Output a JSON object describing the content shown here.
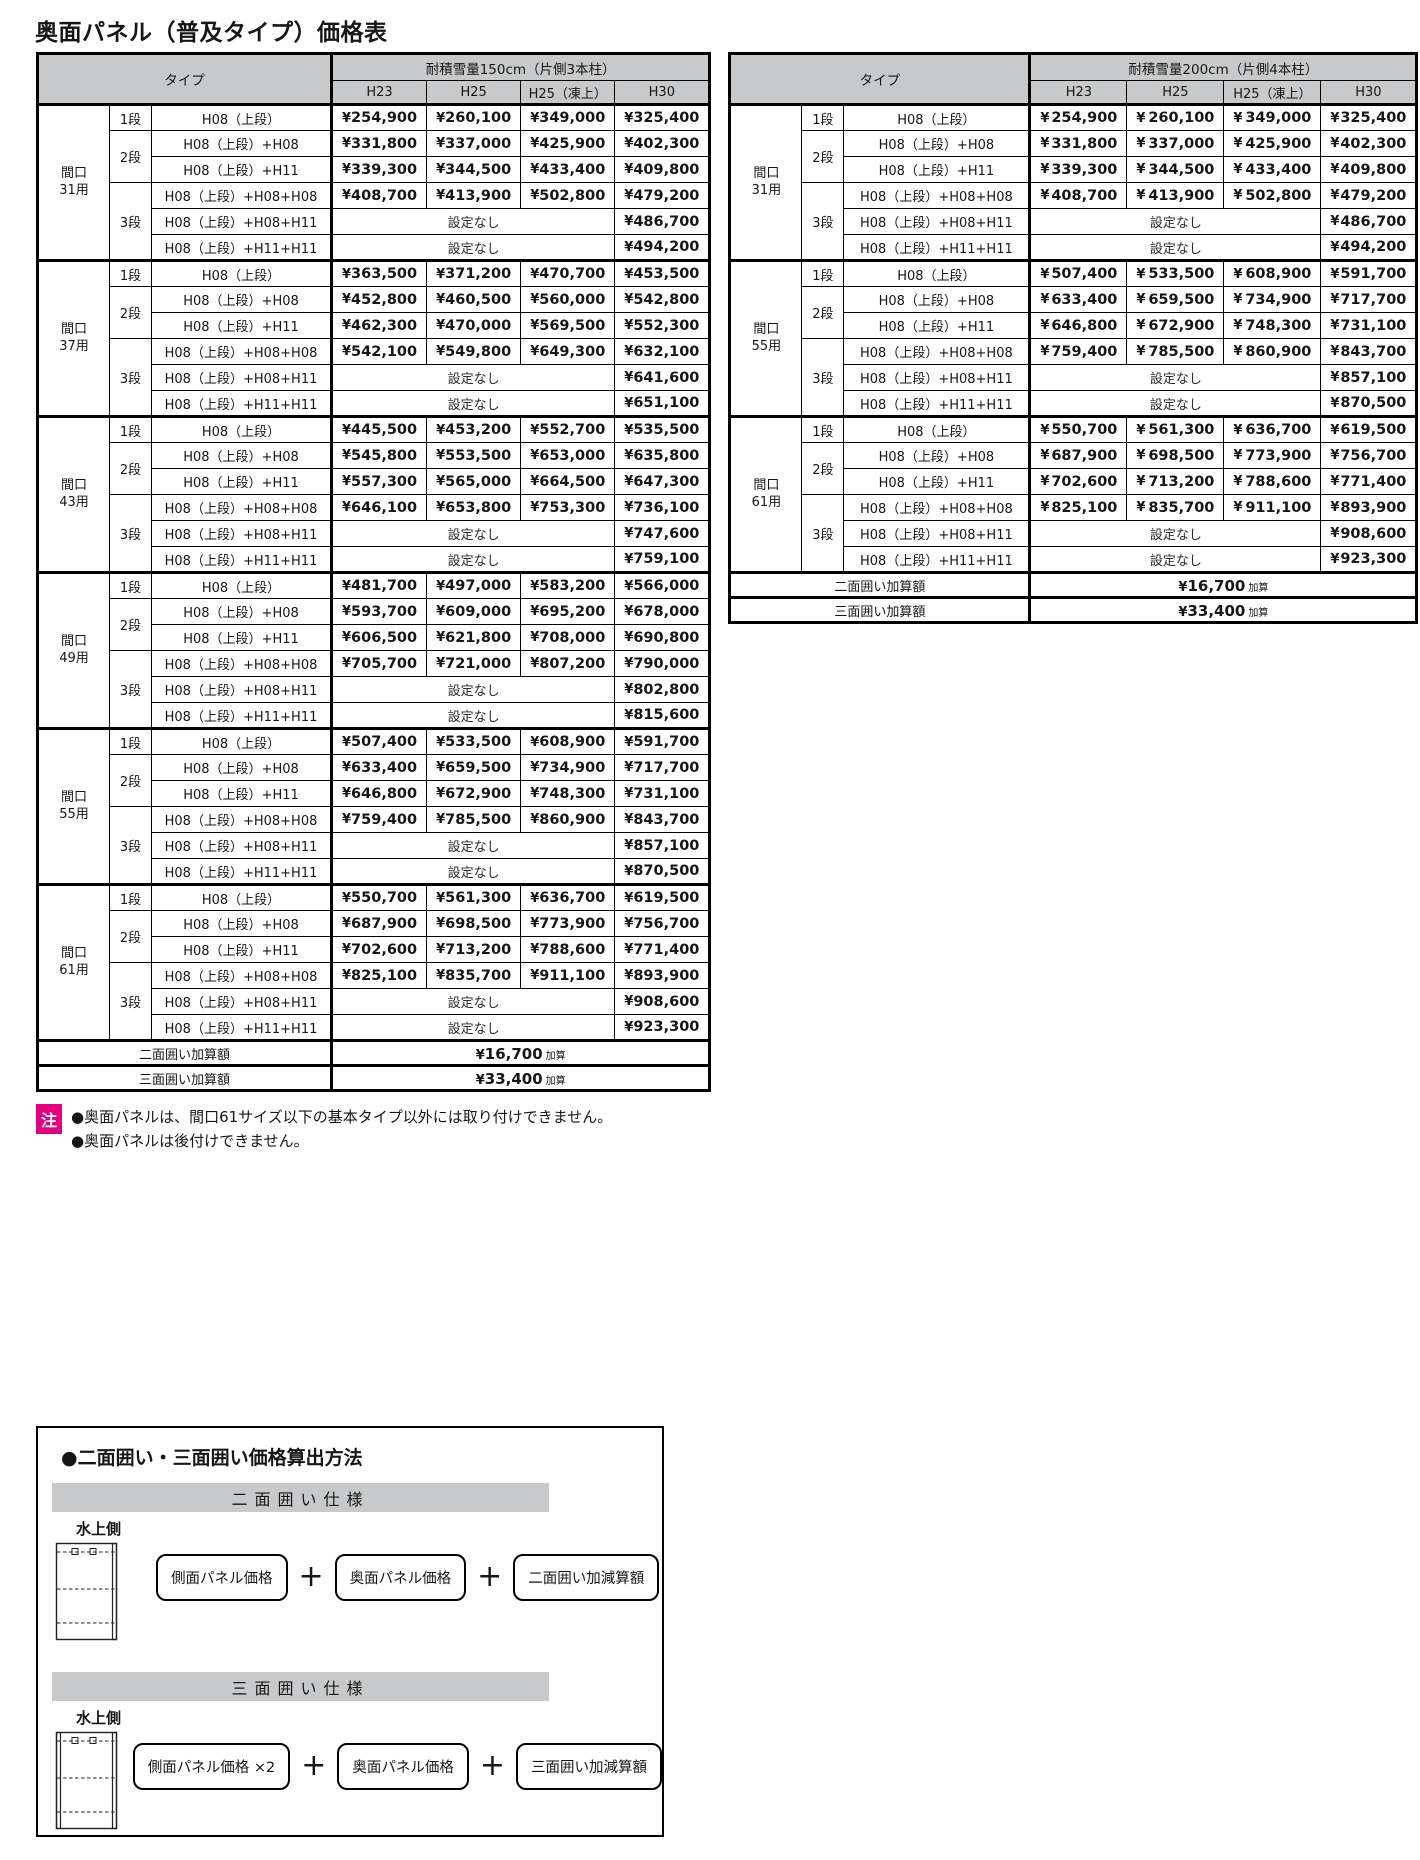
{
  "colors": {
    "header-bg": "#c8c9ca",
    "note-badge": "#e4007f"
  },
  "currency": "¥",
  "labels": {
    "not_available": "設定なし"
  },
  "page_title": "奥面パネル（普及タイプ）価格表",
  "tables": [
    {
      "id": "snow150",
      "header": {
        "type_label": "タイプ",
        "load_label": "耐積雪量150cm（片側3本柱）",
        "columns": [
          "H23",
          "H25",
          "H25（凍上）",
          "H30"
        ]
      },
      "groups": [
        {
          "opening": [
            "間口",
            "31用"
          ],
          "dan_groups": [
            {
              "label": "1段",
              "rows": [
                {
                  "type": "H08（上段）",
                  "prices": [
                    "254,900",
                    "260,100",
                    "349,000",
                    "325,400"
                  ]
                }
              ]
            },
            {
              "label": "2段",
              "rows": [
                {
                  "type": "H08（上段）+H08",
                  "prices": [
                    "331,800",
                    "337,000",
                    "425,900",
                    "402,300"
                  ]
                },
                {
                  "type": "H08（上段）+H11",
                  "prices": [
                    "339,300",
                    "344,500",
                    "433,400",
                    "409,800"
                  ]
                }
              ]
            },
            {
              "label": "3段",
              "rows": [
                {
                  "type": "H08（上段）+H08+H08",
                  "prices": [
                    "408,700",
                    "413,900",
                    "502,800",
                    "479,200"
                  ]
                },
                {
                  "type": "H08（上段）+H08+H11",
                  "h30": "486,700"
                },
                {
                  "type": "H08（上段）+H11+H11",
                  "h30": "494,200"
                }
              ]
            }
          ]
        },
        {
          "opening": [
            "間口",
            "37用"
          ],
          "dan_groups": [
            {
              "label": "1段",
              "rows": [
                {
                  "type": "H08（上段）",
                  "prices": [
                    "363,500",
                    "371,200",
                    "470,700",
                    "453,500"
                  ]
                }
              ]
            },
            {
              "label": "2段",
              "rows": [
                {
                  "type": "H08（上段）+H08",
                  "prices": [
                    "452,800",
                    "460,500",
                    "560,000",
                    "542,800"
                  ]
                },
                {
                  "type": "H08（上段）+H11",
                  "prices": [
                    "462,300",
                    "470,000",
                    "569,500",
                    "552,300"
                  ]
                }
              ]
            },
            {
              "label": "3段",
              "rows": [
                {
                  "type": "H08（上段）+H08+H08",
                  "prices": [
                    "542,100",
                    "549,800",
                    "649,300",
                    "632,100"
                  ]
                },
                {
                  "type": "H08（上段）+H08+H11",
                  "h30": "641,600"
                },
                {
                  "type": "H08（上段）+H11+H11",
                  "h30": "651,100"
                }
              ]
            }
          ]
        },
        {
          "opening": [
            "間口",
            "43用"
          ],
          "dan_groups": [
            {
              "label": "1段",
              "rows": [
                {
                  "type": "H08（上段）",
                  "prices": [
                    "445,500",
                    "453,200",
                    "552,700",
                    "535,500"
                  ]
                }
              ]
            },
            {
              "label": "2段",
              "rows": [
                {
                  "type": "H08（上段）+H08",
                  "prices": [
                    "545,800",
                    "553,500",
                    "653,000",
                    "635,800"
                  ]
                },
                {
                  "type": "H08（上段）+H11",
                  "prices": [
                    "557,300",
                    "565,000",
                    "664,500",
                    "647,300"
                  ]
                }
              ]
            },
            {
              "label": "3段",
              "rows": [
                {
                  "type": "H08（上段）+H08+H08",
                  "prices": [
                    "646,100",
                    "653,800",
                    "753,300",
                    "736,100"
                  ]
                },
                {
                  "type": "H08（上段）+H08+H11",
                  "h30": "747,600"
                },
                {
                  "type": "H08（上段）+H11+H11",
                  "h30": "759,100"
                }
              ]
            }
          ]
        },
        {
          "opening": [
            "間口",
            "49用"
          ],
          "dan_groups": [
            {
              "label": "1段",
              "rows": [
                {
                  "type": "H08（上段）",
                  "prices": [
                    "481,700",
                    "497,000",
                    "583,200",
                    "566,000"
                  ]
                }
              ]
            },
            {
              "label": "2段",
              "rows": [
                {
                  "type": "H08（上段）+H08",
                  "prices": [
                    "593,700",
                    "609,000",
                    "695,200",
                    "678,000"
                  ]
                },
                {
                  "type": "H08（上段）+H11",
                  "prices": [
                    "606,500",
                    "621,800",
                    "708,000",
                    "690,800"
                  ]
                }
              ]
            },
            {
              "label": "3段",
              "rows": [
                {
                  "type": "H08（上段）+H08+H08",
                  "prices": [
                    "705,700",
                    "721,000",
                    "807,200",
                    "790,000"
                  ]
                },
                {
                  "type": "H08（上段）+H08+H11",
                  "h30": "802,800"
                },
                {
                  "type": "H08（上段）+H11+H11",
                  "h30": "815,600"
                }
              ]
            }
          ]
        },
        {
          "opening": [
            "間口",
            "55用"
          ],
          "dan_groups": [
            {
              "label": "1段",
              "rows": [
                {
                  "type": "H08（上段）",
                  "prices": [
                    "507,400",
                    "533,500",
                    "608,900",
                    "591,700"
                  ]
                }
              ]
            },
            {
              "label": "2段",
              "rows": [
                {
                  "type": "H08（上段）+H08",
                  "prices": [
                    "633,400",
                    "659,500",
                    "734,900",
                    "717,700"
                  ]
                },
                {
                  "type": "H08（上段）+H11",
                  "prices": [
                    "646,800",
                    "672,900",
                    "748,300",
                    "731,100"
                  ]
                }
              ]
            },
            {
              "label": "3段",
              "rows": [
                {
                  "type": "H08（上段）+H08+H08",
                  "prices": [
                    "759,400",
                    "785,500",
                    "860,900",
                    "843,700"
                  ]
                },
                {
                  "type": "H08（上段）+H08+H11",
                  "h30": "857,100"
                },
                {
                  "type": "H08（上段）+H11+H11",
                  "h30": "870,500"
                }
              ]
            }
          ]
        },
        {
          "opening": [
            "間口",
            "61用"
          ],
          "dan_groups": [
            {
              "label": "1段",
              "rows": [
                {
                  "type": "H08（上段）",
                  "prices": [
                    "550,700",
                    "561,300",
                    "636,700",
                    "619,500"
                  ]
                }
              ]
            },
            {
              "label": "2段",
              "rows": [
                {
                  "type": "H08（上段）+H08",
                  "prices": [
                    "687,900",
                    "698,500",
                    "773,900",
                    "756,700"
                  ]
                },
                {
                  "type": "H08（上段）+H11",
                  "prices": [
                    "702,600",
                    "713,200",
                    "788,600",
                    "771,400"
                  ]
                }
              ]
            },
            {
              "label": "3段",
              "rows": [
                {
                  "type": "H08（上段）+H08+H08",
                  "prices": [
                    "825,100",
                    "835,700",
                    "911,100",
                    "893,900"
                  ]
                },
                {
                  "type": "H08（上段）+H08+H11",
                  "h30": "908,600"
                },
                {
                  "type": "H08（上段）+H11+H11",
                  "h30": "923,300"
                }
              ]
            }
          ]
        }
      ],
      "footer_rows": [
        {
          "label": "二面囲い加算額",
          "value": "16,700",
          "suffix": "加算"
        },
        {
          "label": "三面囲い加算額",
          "value": "33,400",
          "suffix": "加算"
        }
      ]
    },
    {
      "id": "snow200",
      "header": {
        "type_label": "タイプ",
        "load_label": "耐積雪量200cm（片側4本柱）",
        "columns": [
          "H23",
          "H25",
          "H25（凍上）",
          "H30"
        ]
      },
      "groups": [
        {
          "opening": [
            "間口",
            "31用"
          ],
          "dan_groups": [
            {
              "label": "1段",
              "rows": [
                {
                  "type": "H08（上段）",
                  "prices": [
                    "254,900",
                    "260,100",
                    "349,000",
                    "325,400"
                  ]
                }
              ]
            },
            {
              "label": "2段",
              "rows": [
                {
                  "type": "H08（上段）+H08",
                  "prices": [
                    "331,800",
                    "337,000",
                    "425,900",
                    "402,300"
                  ]
                },
                {
                  "type": "H08（上段）+H11",
                  "prices": [
                    "339,300",
                    "344,500",
                    "433,400",
                    "409,800"
                  ]
                }
              ]
            },
            {
              "label": "3段",
              "rows": [
                {
                  "type": "H08（上段）+H08+H08",
                  "prices": [
                    "408,700",
                    "413,900",
                    "502,800",
                    "479,200"
                  ]
                },
                {
                  "type": "H08（上段）+H08+H11",
                  "h30": "486,700"
                },
                {
                  "type": "H08（上段）+H11+H11",
                  "h30": "494,200"
                }
              ]
            }
          ]
        },
        {
          "opening": [
            "間口",
            "55用"
          ],
          "dan_groups": [
            {
              "label": "1段",
              "rows": [
                {
                  "type": "H08（上段）",
                  "prices": [
                    "507,400",
                    "533,500",
                    "608,900",
                    "591,700"
                  ]
                }
              ]
            },
            {
              "label": "2段",
              "rows": [
                {
                  "type": "H08（上段）+H08",
                  "prices": [
                    "633,400",
                    "659,500",
                    "734,900",
                    "717,700"
                  ]
                },
                {
                  "type": "H08（上段）+H11",
                  "prices": [
                    "646,800",
                    "672,900",
                    "748,300",
                    "731,100"
                  ]
                }
              ]
            },
            {
              "label": "3段",
              "rows": [
                {
                  "type": "H08（上段）+H08+H08",
                  "prices": [
                    "759,400",
                    "785,500",
                    "860,900",
                    "843,700"
                  ]
                },
                {
                  "type": "H08（上段）+H08+H11",
                  "h30": "857,100"
                },
                {
                  "type": "H08（上段）+H11+H11",
                  "h30": "870,500"
                }
              ]
            }
          ]
        },
        {
          "opening": [
            "間口",
            "61用"
          ],
          "dan_groups": [
            {
              "label": "1段",
              "rows": [
                {
                  "type": "H08（上段）",
                  "prices": [
                    "550,700",
                    "561,300",
                    "636,700",
                    "619,500"
                  ]
                }
              ]
            },
            {
              "label": "2段",
              "rows": [
                {
                  "type": "H08（上段）+H08",
                  "prices": [
                    "687,900",
                    "698,500",
                    "773,900",
                    "756,700"
                  ]
                },
                {
                  "type": "H08（上段）+H11",
                  "prices": [
                    "702,600",
                    "713,200",
                    "788,600",
                    "771,400"
                  ]
                }
              ]
            },
            {
              "label": "3段",
              "rows": [
                {
                  "type": "H08（上段）+H08+H08",
                  "prices": [
                    "825,100",
                    "835,700",
                    "911,100",
                    "893,900"
                  ]
                },
                {
                  "type": "H08（上段）+H08+H11",
                  "h30": "908,600"
                },
                {
                  "type": "H08（上段）+H11+H11",
                  "h30": "923,300"
                }
              ]
            }
          ]
        }
      ],
      "footer_rows": [
        {
          "label": "二面囲い加算額",
          "value": "16,700",
          "suffix": "加算"
        },
        {
          "label": "三面囲い加算額",
          "value": "33,400",
          "suffix": "加算"
        }
      ]
    }
  ],
  "note": {
    "badge": "注",
    "lines": [
      "●奥面パネルは、間口61サイズ以下の基本タイプ以外には取り付けできません。",
      "●奥面パネルは後付けできません。"
    ]
  },
  "calc_box": {
    "title": "●二面囲い・三面囲い価格算出方法",
    "plus": "+",
    "sections": [
      {
        "banner": "二面囲い仕様",
        "side_label": "水上側",
        "sides": 2,
        "formula": [
          "側面パネル価格",
          "奥面パネル価格",
          "二面囲い加減算額"
        ]
      },
      {
        "banner": "三面囲い仕様",
        "side_label": "水上側",
        "sides": 3,
        "formula": [
          "側面パネル価格 ×2",
          "奥面パネル価格",
          "三面囲い加減算額"
        ]
      }
    ]
  }
}
